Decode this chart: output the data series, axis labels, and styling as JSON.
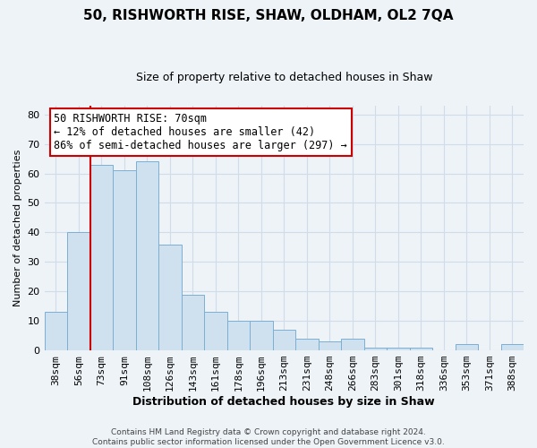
{
  "title": "50, RISHWORTH RISE, SHAW, OLDHAM, OL2 7QA",
  "subtitle": "Size of property relative to detached houses in Shaw",
  "xlabel": "Distribution of detached houses by size in Shaw",
  "ylabel": "Number of detached properties",
  "categories": [
    "38sqm",
    "56sqm",
    "73sqm",
    "91sqm",
    "108sqm",
    "126sqm",
    "143sqm",
    "161sqm",
    "178sqm",
    "196sqm",
    "213sqm",
    "231sqm",
    "248sqm",
    "266sqm",
    "283sqm",
    "301sqm",
    "318sqm",
    "336sqm",
    "353sqm",
    "371sqm",
    "388sqm"
  ],
  "values": [
    13,
    40,
    63,
    61,
    64,
    36,
    19,
    13,
    10,
    10,
    7,
    4,
    3,
    4,
    1,
    1,
    1,
    0,
    2,
    0,
    2
  ],
  "bar_color": "#cfe0ef",
  "bar_edge_color": "#7aafd4",
  "highlight_line_color": "#cc0000",
  "annotation_box_edge_color": "#cc0000",
  "annotation_box_face_color": "#ffffff",
  "ylim": [
    0,
    83
  ],
  "yticks": [
    0,
    10,
    20,
    30,
    40,
    50,
    60,
    70,
    80
  ],
  "grid_color": "#d0dce8",
  "background_color": "#eef3f8",
  "footer_text": "Contains HM Land Registry data © Crown copyright and database right 2024.\nContains public sector information licensed under the Open Government Licence v3.0.",
  "title_fontsize": 11,
  "subtitle_fontsize": 9,
  "xlabel_fontsize": 9,
  "ylabel_fontsize": 8,
  "tick_fontsize": 8,
  "footer_fontsize": 6.5,
  "annotation_fontsize": 8.5
}
